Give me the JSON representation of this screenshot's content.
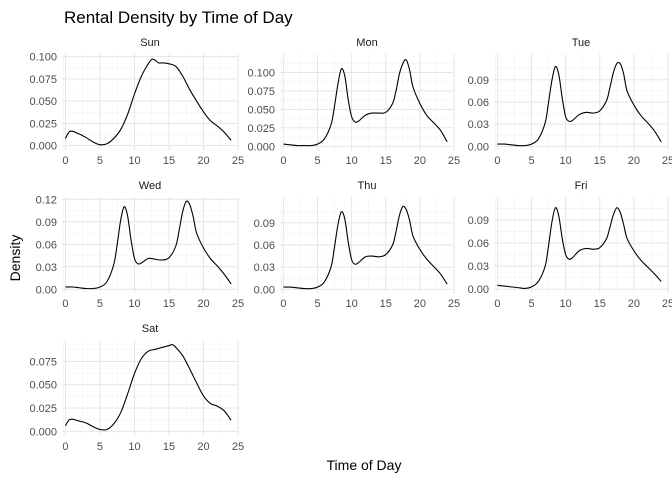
{
  "chart_data": {
    "type": "line",
    "title": "Rental Density by Time of Day",
    "xlabel": "Time of Day",
    "ylabel": "Density",
    "grid": true,
    "facets": [
      {
        "name": "Sun",
        "xlim": [
          -0.5,
          25
        ],
        "x_ticks": [
          0,
          5,
          10,
          15,
          20,
          25
        ],
        "ylim": [
          -0.005,
          0.103
        ],
        "y_ticks": [
          0.0,
          0.025,
          0.05,
          0.075,
          0.1
        ],
        "y_tick_labels": [
          "0.000",
          "0.025",
          "0.050",
          "0.075",
          "0.100"
        ],
        "x": [
          0,
          0.5,
          1,
          2,
          3,
          4,
          5,
          6,
          7,
          8,
          9,
          10,
          11,
          12,
          12.5,
          13,
          13.5,
          14,
          15,
          16,
          17,
          18,
          19,
          20,
          21,
          22,
          23,
          24
        ],
        "y": [
          0.008,
          0.015,
          0.016,
          0.013,
          0.009,
          0.004,
          0.001,
          0.002,
          0.008,
          0.018,
          0.035,
          0.058,
          0.078,
          0.092,
          0.097,
          0.096,
          0.093,
          0.093,
          0.092,
          0.089,
          0.078,
          0.063,
          0.05,
          0.038,
          0.028,
          0.022,
          0.015,
          0.006
        ]
      },
      {
        "name": "Mon",
        "xlim": [
          -0.5,
          25
        ],
        "x_ticks": [
          0,
          5,
          10,
          15,
          20,
          25
        ],
        "ylim": [
          -0.005,
          0.125
        ],
        "y_ticks": [
          0.0,
          0.025,
          0.05,
          0.075,
          0.1
        ],
        "y_tick_labels": [
          "0.000",
          "0.025",
          "0.050",
          "0.075",
          "0.100"
        ],
        "x": [
          0,
          1,
          2,
          3,
          4,
          5,
          6,
          7,
          7.5,
          8,
          8.5,
          9,
          9.5,
          10,
          10.5,
          11,
          12,
          13,
          14,
          15,
          16,
          16.5,
          17,
          17.5,
          18,
          18.5,
          19,
          20,
          21,
          22,
          23,
          24
        ],
        "y": [
          0.003,
          0.002,
          0.001,
          0.001,
          0.001,
          0.003,
          0.01,
          0.03,
          0.055,
          0.085,
          0.105,
          0.095,
          0.063,
          0.04,
          0.033,
          0.034,
          0.042,
          0.045,
          0.045,
          0.046,
          0.058,
          0.075,
          0.098,
          0.112,
          0.117,
          0.103,
          0.08,
          0.058,
          0.042,
          0.032,
          0.022,
          0.006
        ]
      },
      {
        "name": "Tue",
        "xlim": [
          -0.5,
          25
        ],
        "x_ticks": [
          0,
          5,
          10,
          15,
          20,
          25
        ],
        "ylim": [
          -0.005,
          0.125
        ],
        "y_ticks": [
          0.0,
          0.03,
          0.06,
          0.09
        ],
        "y_tick_labels": [
          "0.00",
          "0.03",
          "0.06",
          "0.09"
        ],
        "x": [
          0,
          1,
          2,
          3,
          4,
          5,
          6,
          7,
          7.5,
          8,
          8.5,
          9,
          9.5,
          10,
          10.5,
          11,
          12,
          13,
          14,
          15,
          16,
          16.5,
          17,
          17.5,
          18,
          18.5,
          19,
          20,
          21,
          22,
          23,
          24
        ],
        "y": [
          0.003,
          0.003,
          0.002,
          0.001,
          0.001,
          0.003,
          0.01,
          0.032,
          0.06,
          0.09,
          0.108,
          0.097,
          0.065,
          0.04,
          0.034,
          0.035,
          0.043,
          0.046,
          0.045,
          0.048,
          0.062,
          0.08,
          0.1,
          0.112,
          0.112,
          0.098,
          0.075,
          0.056,
          0.042,
          0.032,
          0.021,
          0.006
        ]
      },
      {
        "name": "Wed",
        "xlim": [
          -0.5,
          25
        ],
        "x_ticks": [
          0,
          5,
          10,
          15,
          20,
          25
        ],
        "ylim": [
          -0.005,
          0.123
        ],
        "y_ticks": [
          0.0,
          0.03,
          0.06,
          0.09,
          0.12
        ],
        "y_tick_labels": [
          "0.00",
          "0.03",
          "0.06",
          "0.09",
          "0.12"
        ],
        "x": [
          0,
          1,
          2,
          3,
          4,
          5,
          6,
          7,
          7.5,
          8,
          8.5,
          9,
          9.5,
          10,
          10.5,
          11,
          12,
          13,
          14,
          15,
          16,
          16.5,
          17,
          17.5,
          18,
          18.5,
          19,
          20,
          21,
          22,
          23,
          24
        ],
        "y": [
          0.003,
          0.003,
          0.002,
          0.001,
          0.001,
          0.003,
          0.01,
          0.033,
          0.06,
          0.092,
          0.11,
          0.098,
          0.066,
          0.041,
          0.034,
          0.035,
          0.041,
          0.04,
          0.039,
          0.042,
          0.058,
          0.08,
          0.104,
          0.117,
          0.113,
          0.097,
          0.075,
          0.055,
          0.041,
          0.031,
          0.02,
          0.007
        ]
      },
      {
        "name": "Thu",
        "xlim": [
          -0.5,
          25
        ],
        "x_ticks": [
          0,
          5,
          10,
          15,
          20,
          25
        ],
        "ylim": [
          -0.005,
          0.125
        ],
        "y_ticks": [
          0.0,
          0.03,
          0.06,
          0.09
        ],
        "y_tick_labels": [
          "0.00",
          "0.03",
          "0.06",
          "0.09"
        ],
        "x": [
          0,
          1,
          2,
          3,
          4,
          5,
          6,
          7,
          7.5,
          8,
          8.5,
          9,
          9.5,
          10,
          10.5,
          11,
          12,
          13,
          14,
          15,
          16,
          16.5,
          17,
          17.5,
          18,
          18.5,
          19,
          20,
          21,
          22,
          23,
          24
        ],
        "y": [
          0.003,
          0.003,
          0.002,
          0.001,
          0.001,
          0.003,
          0.01,
          0.031,
          0.058,
          0.088,
          0.105,
          0.095,
          0.064,
          0.04,
          0.034,
          0.036,
          0.044,
          0.045,
          0.044,
          0.047,
          0.06,
          0.078,
          0.1,
          0.112,
          0.108,
          0.093,
          0.072,
          0.054,
          0.041,
          0.031,
          0.021,
          0.007
        ]
      },
      {
        "name": "Fri",
        "xlim": [
          -0.5,
          25
        ],
        "x_ticks": [
          0,
          5,
          10,
          15,
          20,
          25
        ],
        "ylim": [
          -0.005,
          0.12
        ],
        "y_ticks": [
          0.0,
          0.03,
          0.06,
          0.09
        ],
        "y_tick_labels": [
          "0.00",
          "0.03",
          "0.06",
          "0.09"
        ],
        "x": [
          0,
          1,
          2,
          3,
          4,
          5,
          6,
          7,
          7.5,
          8,
          8.5,
          9,
          9.5,
          10,
          10.5,
          11,
          12,
          13,
          14,
          15,
          16,
          16.5,
          17,
          17.5,
          18,
          18.5,
          19,
          20,
          21,
          22,
          23,
          24
        ],
        "y": [
          0.005,
          0.004,
          0.003,
          0.002,
          0.001,
          0.003,
          0.01,
          0.03,
          0.057,
          0.088,
          0.106,
          0.095,
          0.066,
          0.045,
          0.039,
          0.041,
          0.05,
          0.053,
          0.052,
          0.054,
          0.066,
          0.081,
          0.097,
          0.106,
          0.1,
          0.084,
          0.066,
          0.05,
          0.038,
          0.029,
          0.02,
          0.01
        ]
      },
      {
        "name": "Sat",
        "xlim": [
          -0.5,
          25
        ],
        "x_ticks": [
          0,
          5,
          10,
          15,
          20,
          25
        ],
        "ylim": [
          -0.005,
          0.098
        ],
        "y_ticks": [
          0.0,
          0.025,
          0.05,
          0.075
        ],
        "y_tick_labels": [
          "0.000",
          "0.025",
          "0.050",
          "0.075"
        ],
        "x": [
          0,
          0.5,
          1,
          2,
          3,
          4,
          5,
          6,
          7,
          8,
          9,
          10,
          11,
          12,
          13,
          14,
          15,
          15.5,
          16,
          17,
          18,
          19,
          20,
          21,
          22,
          23,
          24
        ],
        "y": [
          0.006,
          0.012,
          0.013,
          0.011,
          0.009,
          0.005,
          0.002,
          0.002,
          0.008,
          0.02,
          0.04,
          0.062,
          0.078,
          0.086,
          0.088,
          0.09,
          0.092,
          0.093,
          0.09,
          0.081,
          0.067,
          0.052,
          0.038,
          0.03,
          0.027,
          0.022,
          0.012
        ]
      }
    ]
  }
}
